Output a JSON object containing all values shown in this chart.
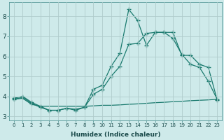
{
  "xlabel": "Humidex (Indice chaleur)",
  "xlim": [
    -0.5,
    23.5
  ],
  "ylim": [
    2.8,
    8.7
  ],
  "background_color": "#ceeaea",
  "grid_color": "#b0cccc",
  "line_color": "#1a7a6e",
  "x_ticks": [
    0,
    1,
    2,
    3,
    4,
    5,
    6,
    7,
    8,
    9,
    10,
    11,
    12,
    13,
    14,
    15,
    16,
    17,
    18,
    19,
    20,
    21,
    22,
    23
  ],
  "y_ticks": [
    3,
    4,
    5,
    6,
    7,
    8
  ],
  "curve1_x": [
    0,
    1,
    2,
    3,
    4,
    5,
    6,
    7,
    8,
    9,
    10,
    11,
    12,
    13,
    14,
    15,
    16,
    17,
    18,
    19,
    20,
    21,
    22,
    23
  ],
  "curve1_y": [
    3.9,
    4.0,
    3.7,
    3.5,
    3.3,
    3.3,
    3.4,
    3.3,
    3.45,
    4.35,
    4.55,
    5.5,
    6.15,
    8.35,
    7.8,
    6.55,
    7.2,
    7.2,
    6.9,
    6.1,
    5.6,
    5.45,
    4.75,
    3.85
  ],
  "curve2_x": [
    0,
    1,
    2,
    3,
    4,
    5,
    6,
    7,
    8,
    9,
    10,
    11,
    12,
    13,
    14,
    15,
    16,
    17,
    18,
    19,
    20,
    21,
    22,
    23
  ],
  "curve2_y": [
    3.85,
    3.95,
    3.65,
    3.45,
    3.3,
    3.3,
    3.4,
    3.35,
    3.45,
    4.1,
    4.35,
    5.0,
    5.5,
    6.6,
    6.65,
    7.15,
    7.2,
    7.2,
    7.2,
    6.05,
    6.05,
    5.6,
    5.45,
    3.82
  ],
  "curve3_x": [
    0,
    1,
    2,
    3,
    4,
    5,
    6,
    7,
    8,
    9,
    10,
    11,
    12,
    13,
    14,
    15,
    16,
    17,
    18,
    19,
    20,
    21,
    22,
    23
  ],
  "curve3_y": [
    3.85,
    3.9,
    3.6,
    3.5,
    3.5,
    3.5,
    3.5,
    3.5,
    3.5,
    3.52,
    3.55,
    3.55,
    3.57,
    3.6,
    3.62,
    3.65,
    3.68,
    3.7,
    3.73,
    3.75,
    3.78,
    3.8,
    3.82,
    3.85
  ]
}
